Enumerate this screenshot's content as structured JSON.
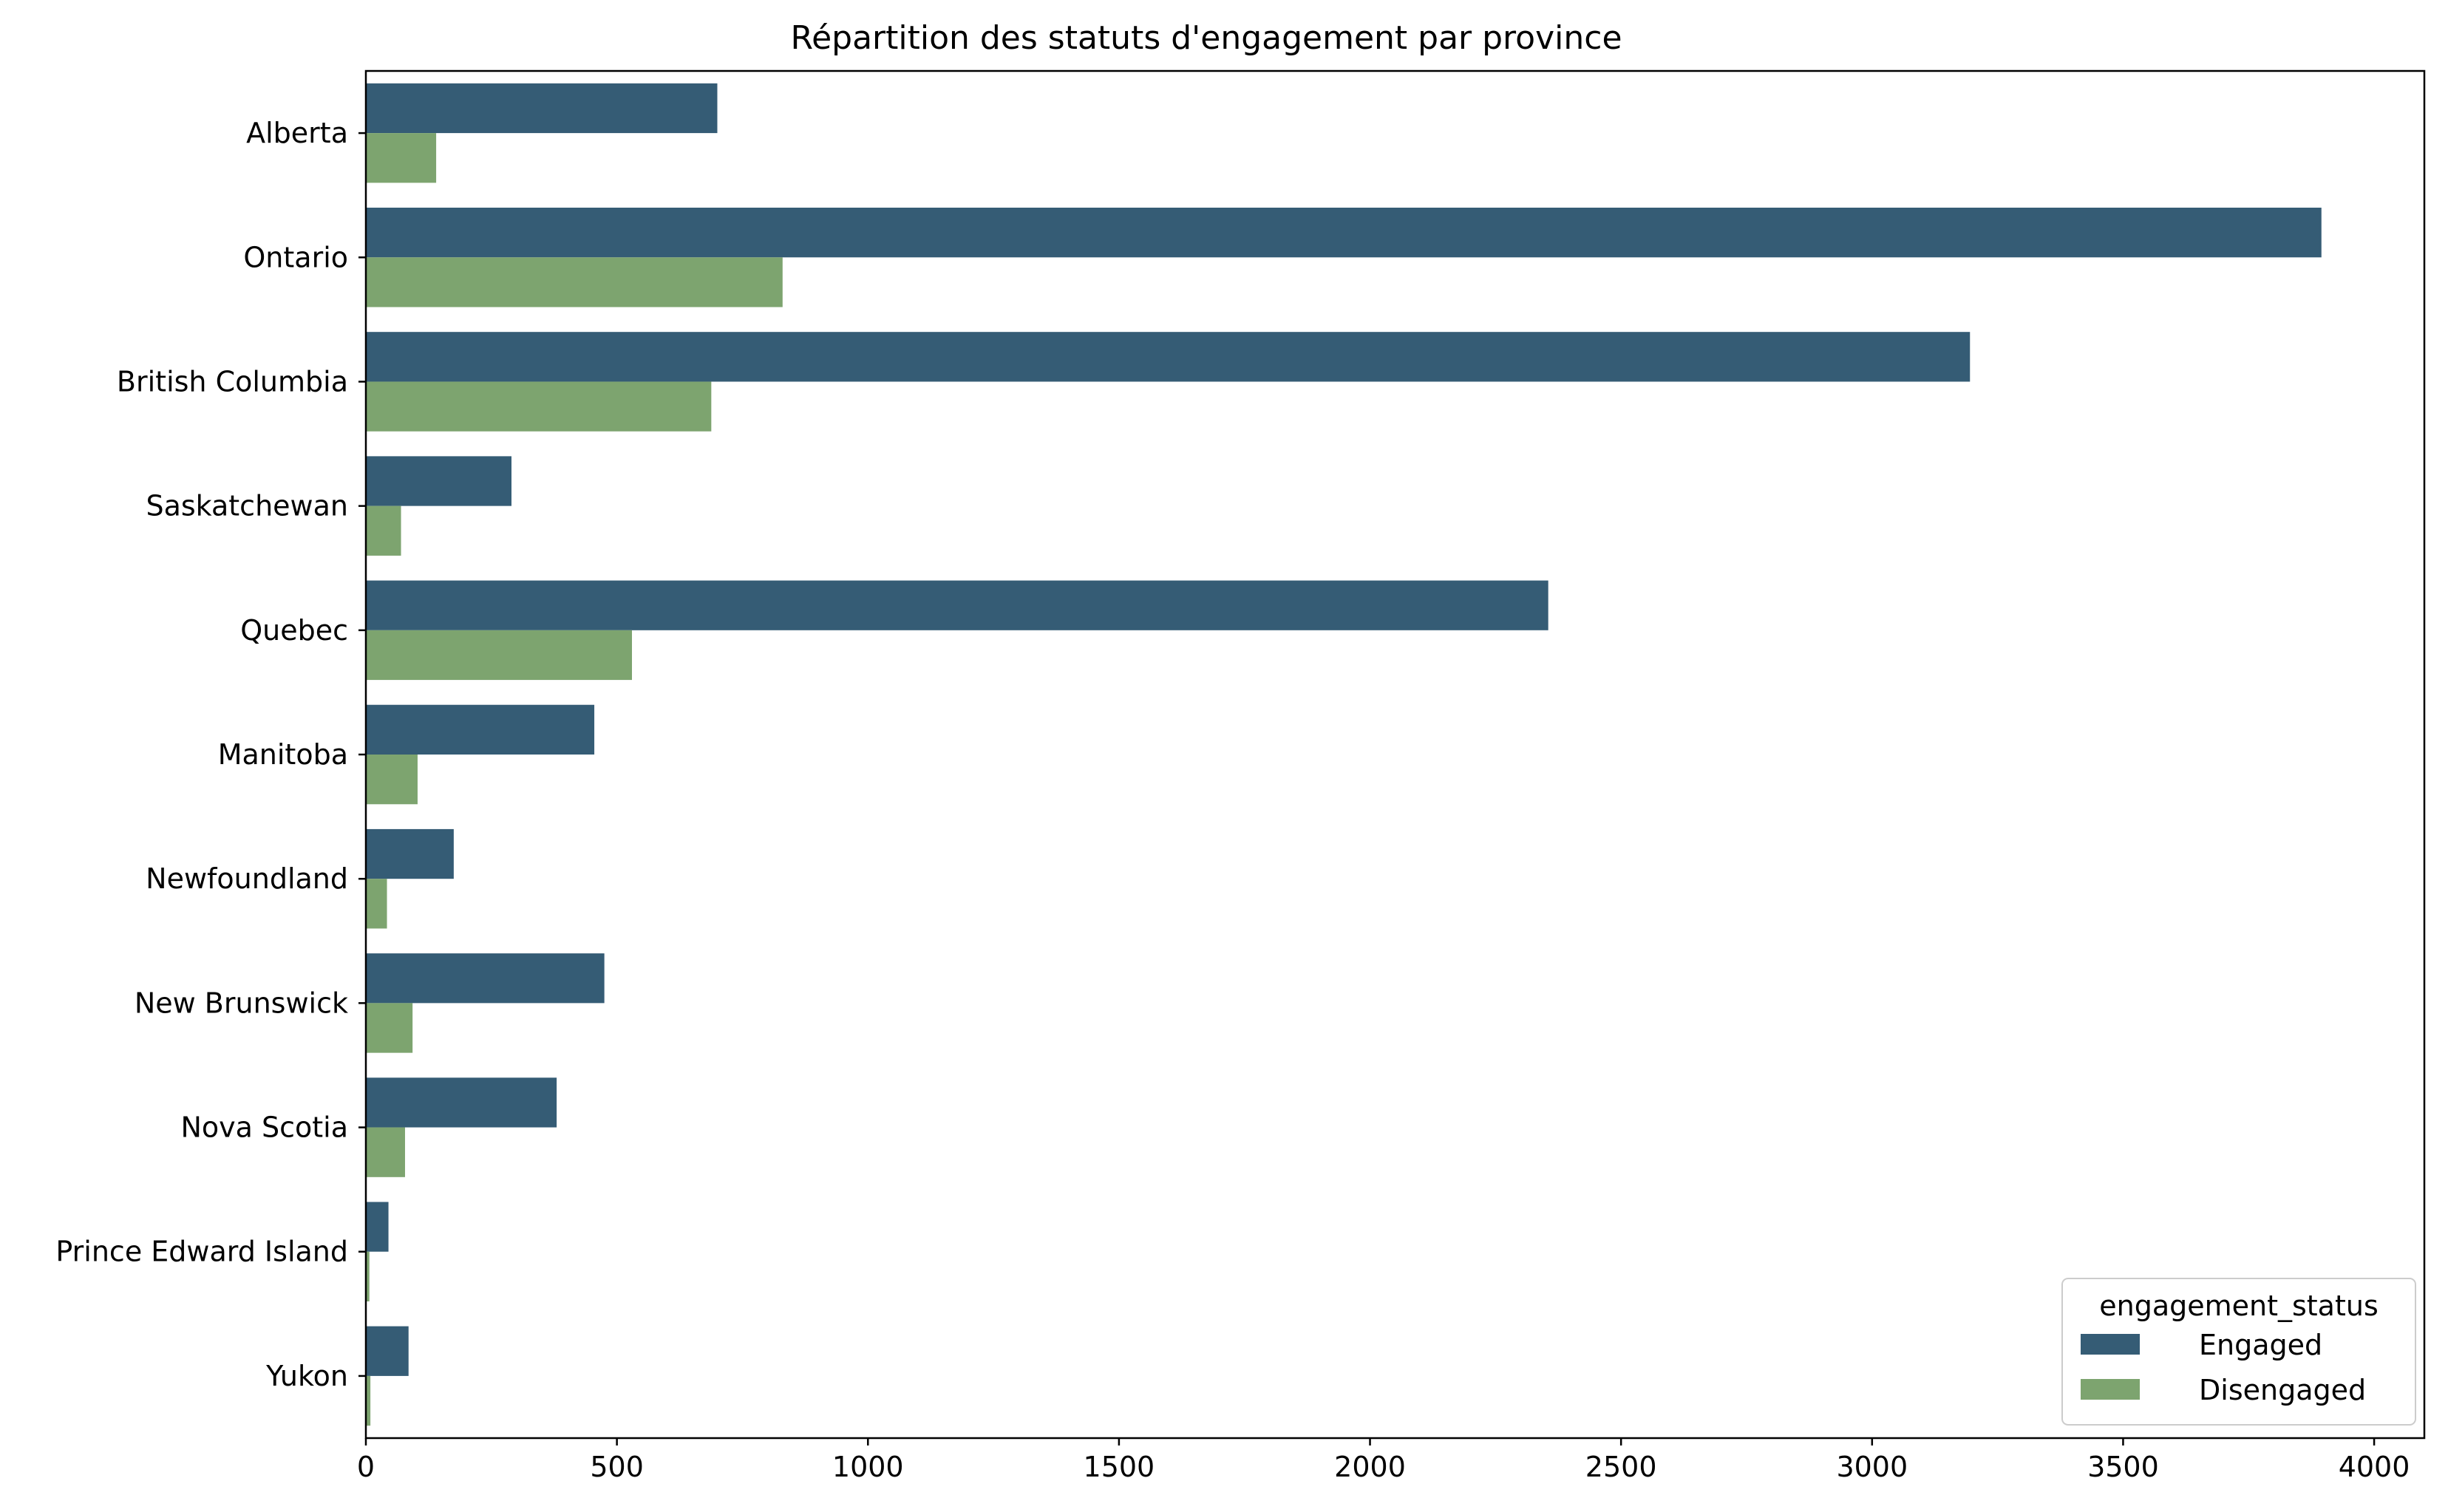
{
  "chart_data": {
    "type": "bar",
    "orientation": "horizontal",
    "title": "Répartition des statuts d'engagement par province",
    "xlabel": "",
    "ylabel": "",
    "xlim": [
      0,
      4100
    ],
    "x_ticks": [
      0,
      500,
      1000,
      1500,
      2000,
      2500,
      3000,
      3500,
      4000
    ],
    "categories": [
      "Alberta",
      "Ontario",
      "British Columbia",
      "Saskatchewan",
      "Quebec",
      "Manitoba",
      "Newfoundland",
      "New Brunswick",
      "Nova Scotia",
      "Prince Edward Island",
      "Yukon"
    ],
    "series": [
      {
        "name": "Engaged",
        "color": "#355c75",
        "values": [
          700,
          3895,
          3195,
          290,
          2355,
          455,
          175,
          475,
          380,
          45,
          85
        ]
      },
      {
        "name": "Disengaged",
        "color": "#7da46f",
        "values": [
          140,
          830,
          688,
          70,
          530,
          103,
          42,
          93,
          78,
          7,
          9
        ]
      }
    ],
    "grid": false,
    "legend": {
      "title": "engagement_status",
      "placement": "lower right"
    }
  }
}
